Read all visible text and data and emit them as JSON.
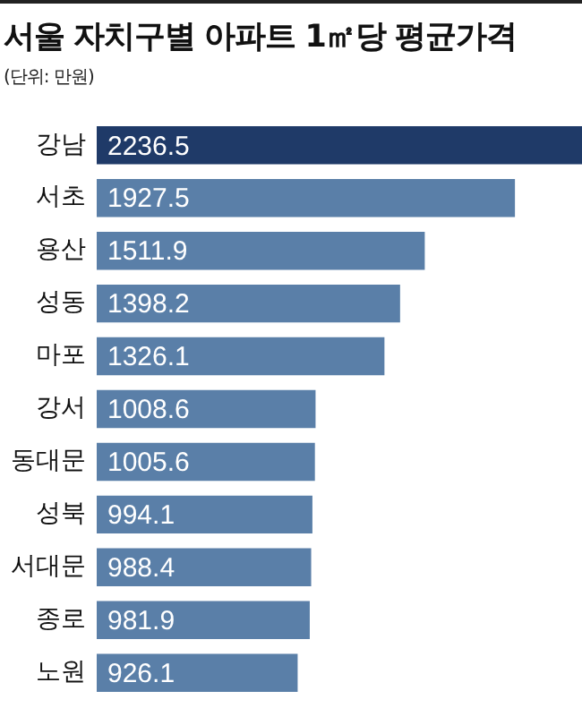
{
  "chart_data": {
    "type": "bar",
    "orientation": "horizontal",
    "title": "서울 자치구별 아파트 1㎡당 평균가격",
    "subtitle": "(단위: 만원)",
    "categories": [
      "강남",
      "서초",
      "용산",
      "성동",
      "마포",
      "강서",
      "동대문",
      "성북",
      "서대문",
      "종로",
      "노원"
    ],
    "values": [
      2236.5,
      1927.5,
      1511.9,
      1398.2,
      1326.1,
      1008.6,
      1005.6,
      994.1,
      988.4,
      981.9,
      926.1
    ],
    "colors": [
      "#1f3a68",
      "#5a7fa8",
      "#5a7fa8",
      "#5a7fa8",
      "#5a7fa8",
      "#5a7fa8",
      "#5a7fa8",
      "#5a7fa8",
      "#5a7fa8",
      "#5a7fa8",
      "#5a7fa8"
    ],
    "data_labels": true,
    "legend": false,
    "grid": false,
    "tick_labels": "y"
  }
}
